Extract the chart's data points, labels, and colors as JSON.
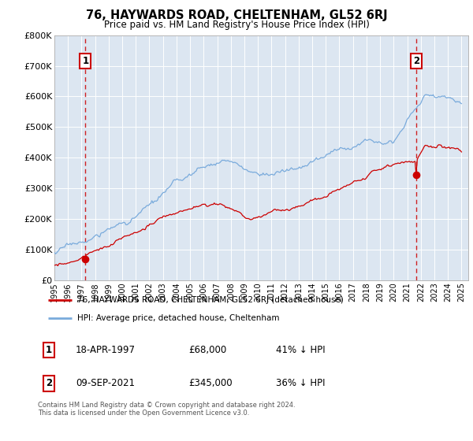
{
  "title": "76, HAYWARDS ROAD, CHELTENHAM, GL52 6RJ",
  "subtitle": "Price paid vs. HM Land Registry's House Price Index (HPI)",
  "legend_line1": "76, HAYWARDS ROAD, CHELTENHAM, GL52 6RJ (detached house)",
  "legend_line2": "HPI: Average price, detached house, Cheltenham",
  "annotation1_label": "1",
  "annotation1_date": "18-APR-1997",
  "annotation1_price": "£68,000",
  "annotation1_hpi": "41% ↓ HPI",
  "annotation2_label": "2",
  "annotation2_date": "09-SEP-2021",
  "annotation2_price": "£345,000",
  "annotation2_hpi": "36% ↓ HPI",
  "footer": "Contains HM Land Registry data © Crown copyright and database right 2024.\nThis data is licensed under the Open Government Licence v3.0.",
  "sale1_year": 1997.29,
  "sale1_value": 68000,
  "sale2_year": 2021.69,
  "sale2_value": 345000,
  "red_color": "#cc0000",
  "blue_color": "#7aabdc",
  "background_color": "#dce6f1",
  "ylim": [
    0,
    800000
  ],
  "xlim_start": 1995.0,
  "xlim_end": 2025.5,
  "yticks": [
    0,
    100000,
    200000,
    300000,
    400000,
    500000,
    600000,
    700000,
    800000
  ],
  "ylabels": [
    "£0",
    "£100K",
    "£200K",
    "£300K",
    "£400K",
    "£500K",
    "£600K",
    "£700K",
    "£800K"
  ]
}
